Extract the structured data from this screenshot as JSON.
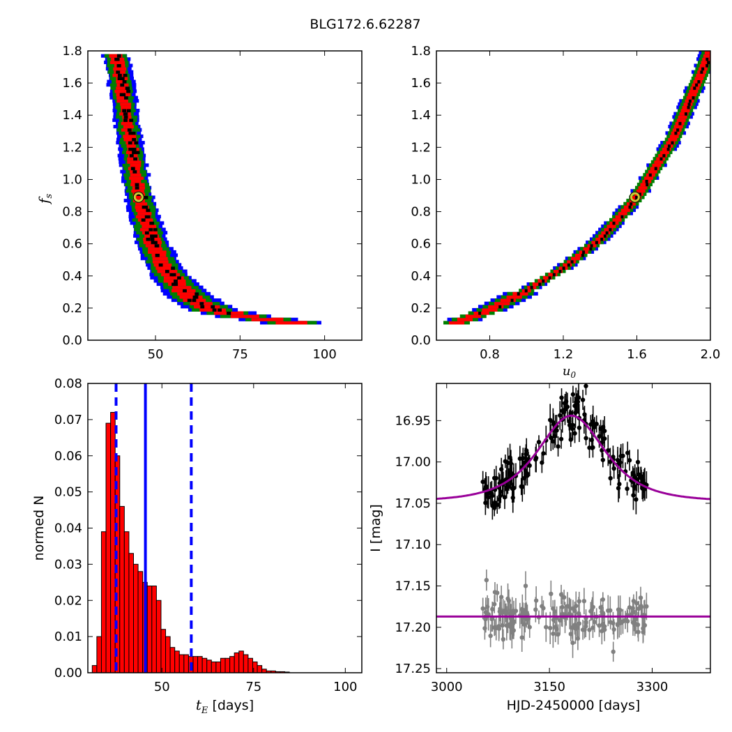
{
  "figure": {
    "suptitle": "BLG172.6.62287"
  },
  "chart_data": [
    {
      "id": "fs_vs_te",
      "type": "heatmap",
      "xlabel": "",
      "ylabel": "f_s",
      "xlim": [
        30,
        111
      ],
      "ylim": [
        0,
        1.8
      ],
      "xticks": [
        50,
        75,
        100
      ],
      "yticks": [
        0.0,
        0.2,
        0.4,
        0.6,
        0.8,
        1.0,
        1.2,
        1.4,
        1.6,
        1.8
      ],
      "ridge": [
        {
          "fs": 0.1,
          "center": 90,
          "width": 11
        },
        {
          "fs": 0.14,
          "center": 76,
          "width": 10
        },
        {
          "fs": 0.18,
          "center": 67,
          "width": 9
        },
        {
          "fs": 0.25,
          "center": 61,
          "width": 8
        },
        {
          "fs": 0.35,
          "center": 56,
          "width": 7
        },
        {
          "fs": 0.45,
          "center": 52.5,
          "width": 6
        },
        {
          "fs": 0.6,
          "center": 49,
          "width": 5.5
        },
        {
          "fs": 0.75,
          "center": 47,
          "width": 5
        },
        {
          "fs": 0.9,
          "center": 45,
          "width": 4.5
        },
        {
          "fs": 1.1,
          "center": 43.5,
          "width": 4
        },
        {
          "fs": 1.3,
          "center": 42,
          "width": 4
        },
        {
          "fs": 1.5,
          "center": 40.5,
          "width": 4
        },
        {
          "fs": 1.7,
          "center": 39,
          "width": 4
        },
        {
          "fs": 1.78,
          "center": 38,
          "width": 4
        }
      ],
      "marker": {
        "x": 45,
        "y": 0.89
      },
      "colors": {
        "inner": "#000000",
        "one_sigma": "#ff0000",
        "two_sigma": "#008000",
        "three_sigma": "#0000ff",
        "marker": "#cccc33"
      }
    },
    {
      "id": "fs_vs_u0",
      "type": "heatmap",
      "xlabel": "u_0",
      "ylabel": "",
      "xlim": [
        0.51,
        2.0
      ],
      "ylim": [
        0,
        1.8
      ],
      "xticks": [
        0.8,
        1.2,
        1.6,
        2.0
      ],
      "yticks": [
        0.0,
        0.2,
        0.4,
        0.6,
        0.8,
        1.0,
        1.2,
        1.4,
        1.6,
        1.8
      ],
      "ridge": [
        {
          "u0": 0.62,
          "fs": 0.1
        },
        {
          "u0": 0.8,
          "fs": 0.18
        },
        {
          "u0": 1.0,
          "fs": 0.3
        },
        {
          "u0": 1.2,
          "fs": 0.44
        },
        {
          "u0": 1.4,
          "fs": 0.62
        },
        {
          "u0": 1.6,
          "fs": 0.88
        },
        {
          "u0": 1.8,
          "fs": 1.25
        },
        {
          "u0": 1.95,
          "fs": 1.65
        },
        {
          "u0": 2.0,
          "fs": 1.8
        }
      ],
      "marker": {
        "x": 1.59,
        "y": 0.89
      },
      "colors": {
        "inner": "#000000",
        "one_sigma": "#ff0000",
        "two_sigma": "#008000",
        "three_sigma": "#0000ff",
        "marker": "#cccc33"
      }
    },
    {
      "id": "te_histogram",
      "type": "bar",
      "xlabel": "t_E",
      "xlabel_suffix": " [days]",
      "ylabel": "normed N",
      "xlim": [
        29.8,
        104.5
      ],
      "ylim": [
        0,
        0.08
      ],
      "xticks": [
        50,
        75,
        100
      ],
      "yticks": [
        0.0,
        0.01,
        0.02,
        0.03,
        0.04,
        0.05,
        0.06,
        0.07,
        0.08
      ],
      "bin_start": 31,
      "bin_width": 1.25,
      "values": [
        0.002,
        0.01,
        0.039,
        0.069,
        0.072,
        0.06,
        0.046,
        0.039,
        0.033,
        0.03,
        0.028,
        0.025,
        0.024,
        0.024,
        0.02,
        0.012,
        0.01,
        0.007,
        0.006,
        0.005,
        0.005,
        0.0045,
        0.0045,
        0.0045,
        0.004,
        0.0035,
        0.003,
        0.003,
        0.004,
        0.004,
        0.0045,
        0.0055,
        0.006,
        0.005,
        0.004,
        0.003,
        0.002,
        0.001,
        0.0005,
        0.0005,
        0.0003,
        0.0003,
        0.0002
      ],
      "median_line": 45.5,
      "interval_lines": [
        37.5,
        58
      ],
      "colors": {
        "bar": "#ff0000",
        "lines": "#0000ff"
      }
    },
    {
      "id": "lightcurve",
      "type": "scatter",
      "xlabel": "HJD-2450000 [days]",
      "ylabel": "I [mag]",
      "xlim": [
        2985,
        3385
      ],
      "ylim": [
        17.255,
        16.905
      ],
      "xticks": [
        3000,
        3150,
        3300
      ],
      "yticks": [
        16.95,
        17.0,
        17.05,
        17.1,
        17.15,
        17.2,
        17.25
      ],
      "model": {
        "baseline": 17.048,
        "peak": 16.944,
        "t0": 3182,
        "tE": 45.5,
        "u0": 1.59
      },
      "residual_baseline": 17.187,
      "data_range": [
        3050,
        3293
      ],
      "n_points": 170,
      "colors": {
        "data": "#000000",
        "residuals": "#808080",
        "model": "#990099"
      }
    }
  ]
}
